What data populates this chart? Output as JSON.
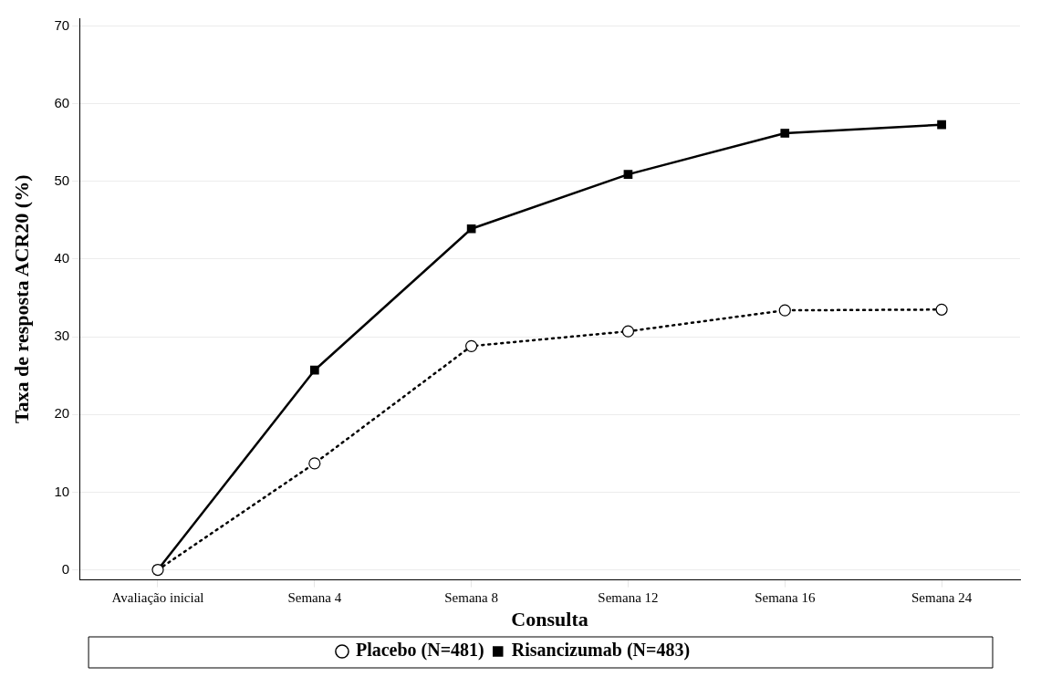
{
  "chart_data": {
    "type": "line",
    "xlabel": "Consulta",
    "ylabel": "Taxa de resposta ACR20 (%)",
    "categories": [
      "Avaliação inicial",
      "Semana 4",
      "Semana 8",
      "Semana 12",
      "Semana 16",
      "Semana 24"
    ],
    "ylim": [
      -1.3,
      71
    ],
    "yticks": [
      0,
      10,
      20,
      30,
      40,
      50,
      60,
      70
    ],
    "grid": "y",
    "legend": "bottom",
    "series": [
      {
        "name": "Placebo (N=481)",
        "color": "#000000",
        "marker": "circle",
        "line_style": "dotted",
        "values": [
          0,
          13.7,
          28.8,
          30.7,
          33.4,
          33.5
        ]
      },
      {
        "name": "Risancizumab (N=483)",
        "color": "#000000",
        "marker": "square",
        "line_style": "solid",
        "values": [
          0,
          25.7,
          43.9,
          50.9,
          56.2,
          57.3
        ]
      }
    ]
  }
}
